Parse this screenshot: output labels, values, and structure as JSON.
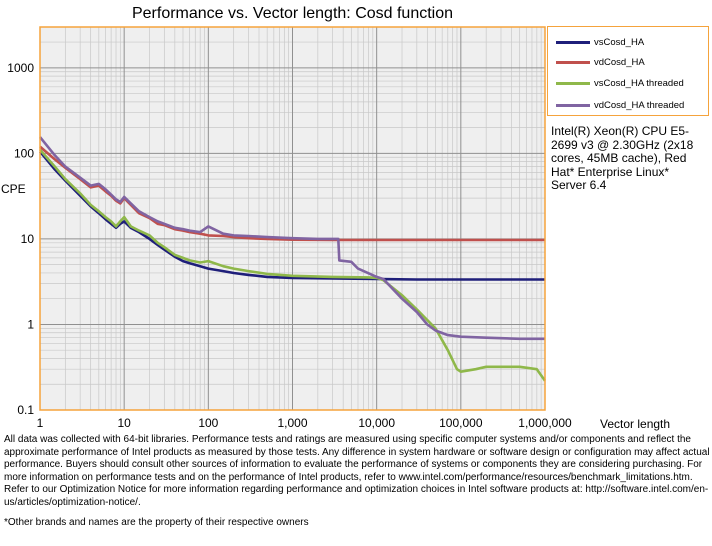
{
  "chart_data": {
    "type": "line",
    "title": "Performance vs. Vector length: Cosd function",
    "xlabel": "Vector length",
    "ylabel": "CPE",
    "x_scale": "log",
    "y_scale": "log",
    "xlim": [
      1,
      1000000
    ],
    "ylim": [
      0.1,
      3000
    ],
    "x_ticks": [
      1,
      10,
      100,
      1000,
      10000,
      100000,
      1000000
    ],
    "x_tick_labels": [
      "1",
      "10",
      "100",
      "1,000",
      "10,000",
      "100,000",
      "1,000,000"
    ],
    "y_ticks": [
      0.1,
      1,
      10,
      100,
      1000
    ],
    "y_tick_labels": [
      "0.1",
      "1",
      "10",
      "100",
      "1000"
    ],
    "grid": true,
    "legend_position": "right",
    "series": [
      {
        "name": "vsCosd_HA",
        "color": "#1f1f7a",
        "points": [
          [
            1,
            105
          ],
          [
            1.5,
            65
          ],
          [
            2,
            48
          ],
          [
            3,
            32
          ],
          [
            4,
            24
          ],
          [
            5,
            20
          ],
          [
            6,
            17
          ],
          [
            7,
            15
          ],
          [
            8,
            13.5
          ],
          [
            9,
            15
          ],
          [
            10,
            16
          ],
          [
            12,
            13.5
          ],
          [
            15,
            12
          ],
          [
            20,
            10
          ],
          [
            25,
            8.5
          ],
          [
            30,
            7.5
          ],
          [
            40,
            6.2
          ],
          [
            50,
            5.5
          ],
          [
            60,
            5.2
          ],
          [
            80,
            4.8
          ],
          [
            100,
            4.5
          ],
          [
            150,
            4.2
          ],
          [
            200,
            4.0
          ],
          [
            300,
            3.8
          ],
          [
            500,
            3.6
          ],
          [
            1000,
            3.5
          ],
          [
            3000,
            3.45
          ],
          [
            10000,
            3.4
          ],
          [
            30000,
            3.35
          ],
          [
            100000,
            3.35
          ],
          [
            1000000,
            3.35
          ]
        ]
      },
      {
        "name": "vdCosd_HA",
        "color": "#c0504d",
        "points": [
          [
            1,
            120
          ],
          [
            1.5,
            85
          ],
          [
            2,
            68
          ],
          [
            3,
            50
          ],
          [
            4,
            40
          ],
          [
            5,
            42
          ],
          [
            6,
            36
          ],
          [
            7,
            32
          ],
          [
            8,
            28
          ],
          [
            9,
            26
          ],
          [
            10,
            30
          ],
          [
            12,
            25
          ],
          [
            15,
            20
          ],
          [
            20,
            17.5
          ],
          [
            25,
            15
          ],
          [
            30,
            14.5
          ],
          [
            40,
            13
          ],
          [
            50,
            12.5
          ],
          [
            60,
            12
          ],
          [
            80,
            11.5
          ],
          [
            100,
            11
          ],
          [
            150,
            10.8
          ],
          [
            200,
            10.5
          ],
          [
            300,
            10.2
          ],
          [
            500,
            10
          ],
          [
            1000,
            9.8
          ],
          [
            3000,
            9.7
          ],
          [
            10000,
            9.7
          ],
          [
            30000,
            9.7
          ],
          [
            100000,
            9.7
          ],
          [
            1000000,
            9.7
          ]
        ]
      },
      {
        "name": "vsCosd_HA threaded",
        "color": "#8fb84a",
        "points": [
          [
            1,
            110
          ],
          [
            1.5,
            70
          ],
          [
            2,
            50
          ],
          [
            3,
            34
          ],
          [
            4,
            25
          ],
          [
            5,
            21
          ],
          [
            6,
            18
          ],
          [
            7,
            16
          ],
          [
            8,
            14
          ],
          [
            9,
            16
          ],
          [
            10,
            18
          ],
          [
            12,
            14
          ],
          [
            15,
            12.5
          ],
          [
            20,
            11
          ],
          [
            25,
            9
          ],
          [
            30,
            8
          ],
          [
            40,
            6.5
          ],
          [
            50,
            6
          ],
          [
            60,
            5.6
          ],
          [
            80,
            5.3
          ],
          [
            100,
            5.5
          ],
          [
            150,
            4.8
          ],
          [
            200,
            4.5
          ],
          [
            300,
            4.2
          ],
          [
            500,
            3.9
          ],
          [
            1000,
            3.7
          ],
          [
            3000,
            3.6
          ],
          [
            8000,
            3.55
          ],
          [
            10000,
            3.5
          ],
          [
            12000,
            3.3
          ],
          [
            20000,
            2.2
          ],
          [
            30000,
            1.5
          ],
          [
            50000,
            0.9
          ],
          [
            70000,
            0.5
          ],
          [
            90000,
            0.3
          ],
          [
            100000,
            0.28
          ],
          [
            150000,
            0.3
          ],
          [
            200000,
            0.32
          ],
          [
            500000,
            0.32
          ],
          [
            800000,
            0.3
          ],
          [
            1000000,
            0.22
          ]
        ]
      },
      {
        "name": "vdCosd_HA threaded",
        "color": "#8064a2",
        "points": [
          [
            1,
            155
          ],
          [
            1.5,
            95
          ],
          [
            2,
            70
          ],
          [
            3,
            52
          ],
          [
            4,
            42
          ],
          [
            5,
            44
          ],
          [
            6,
            38
          ],
          [
            7,
            33
          ],
          [
            8,
            29
          ],
          [
            9,
            27
          ],
          [
            10,
            31
          ],
          [
            12,
            26
          ],
          [
            15,
            21
          ],
          [
            20,
            18
          ],
          [
            25,
            16
          ],
          [
            30,
            15
          ],
          [
            40,
            13.5
          ],
          [
            50,
            13
          ],
          [
            60,
            12.5
          ],
          [
            80,
            12
          ],
          [
            100,
            14
          ],
          [
            150,
            11.5
          ],
          [
            200,
            11
          ],
          [
            300,
            10.8
          ],
          [
            500,
            10.5
          ],
          [
            1000,
            10.2
          ],
          [
            2000,
            10
          ],
          [
            3500,
            10
          ],
          [
            3600,
            5.6
          ],
          [
            5000,
            5.4
          ],
          [
            6000,
            4.5
          ],
          [
            10000,
            3.6
          ],
          [
            12000,
            3.4
          ],
          [
            20000,
            2.0
          ],
          [
            30000,
            1.4
          ],
          [
            40000,
            1.0
          ],
          [
            50000,
            0.85
          ],
          [
            70000,
            0.75
          ],
          [
            100000,
            0.72
          ],
          [
            200000,
            0.7
          ],
          [
            500000,
            0.68
          ],
          [
            1000000,
            0.68
          ]
        ]
      }
    ]
  },
  "info_text": "Intel(R) Xeon(R) CPU E5-2699 v3 @ 2.30GHz (2x18 cores, 45MB cache), Red Hat* Enterprise Linux* Server 6.4",
  "footnote": "All data was collected with 64-bit libraries. Performance tests and ratings are measured using specific computer systems and/or components and reflect the approximate performance of Intel products as measured by those tests. Any difference in system hardware or software design or configuration may affect actual performance. Buyers should consult other sources of information to evaluate the performance of systems or components they are considering purchasing. For more information on performance tests and on the performance of Intel products, refer to www.intel.com/performance/resources/benchmark_limitations.htm. Refer to our Optimization Notice for more information regarding performance and optimization choices in Intel software products at: http://software.intel.com/en-us/articles/optimization-notice/.",
  "footnote2": "*Other brands and names are the property of their respective owners"
}
